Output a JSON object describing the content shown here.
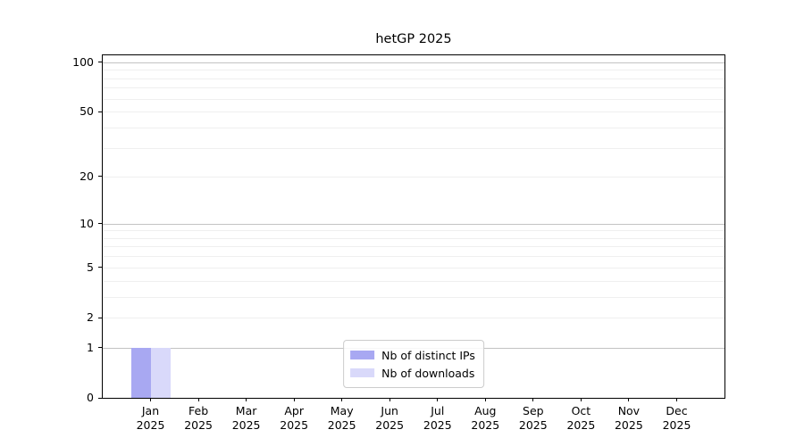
{
  "title": "hetGP 2025",
  "chart_data": {
    "type": "bar",
    "title": "hetGP 2025",
    "x_categories": [
      "Jan 2025",
      "Feb 2025",
      "Mar 2025",
      "Apr 2025",
      "May 2025",
      "Jun 2025",
      "Jul 2025",
      "Aug 2025",
      "Sep 2025",
      "Oct 2025",
      "Nov 2025",
      "Dec 2025"
    ],
    "series": [
      {
        "name": "Nb of distinct IPs",
        "color": "#a8a8f2",
        "values": [
          1,
          0,
          0,
          0,
          0,
          0,
          0,
          0,
          0,
          0,
          0,
          0
        ]
      },
      {
        "name": "Nb of downloads",
        "color": "#d9d9fa",
        "values": [
          1,
          0,
          0,
          0,
          0,
          0,
          0,
          0,
          0,
          0,
          0,
          0
        ]
      }
    ],
    "y_axis": {
      "scale": "log1p",
      "min": 0,
      "top": 110,
      "tick_values": [
        0,
        1,
        2,
        5,
        10,
        20,
        50,
        100
      ],
      "tick_labels": [
        "0",
        "1",
        "2",
        "5",
        "10",
        "20",
        "50",
        "100"
      ],
      "major_gridlines": [
        1,
        10,
        100
      ],
      "minor_gridlines": [
        2,
        3,
        4,
        5,
        6,
        7,
        8,
        9,
        20,
        30,
        40,
        50,
        60,
        70,
        80,
        90
      ]
    },
    "legend": {
      "position": "lower center",
      "entries": [
        "Nb of distinct IPs",
        "Nb of downloads"
      ]
    },
    "grid": true
  },
  "colors": {
    "bar_distinct_ips": "#a8a8f2",
    "bar_downloads": "#d9d9fa",
    "gridline_major": "#c3c3c3",
    "gridline_minor": "#efefef",
    "axis": "#000000",
    "legend_border": "#cccccc",
    "background": "#ffffff"
  }
}
